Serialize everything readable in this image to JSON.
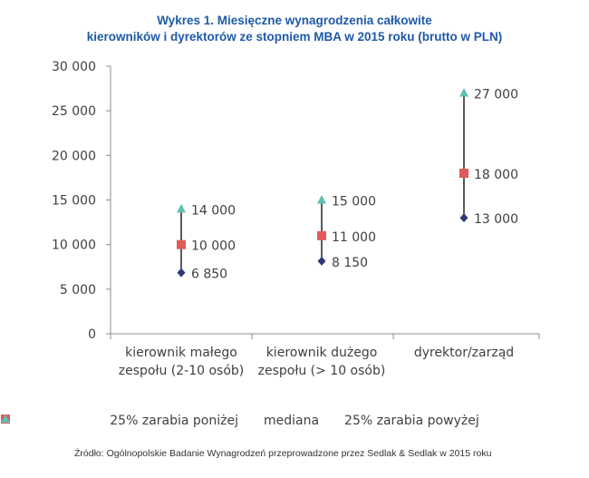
{
  "title_line1": "Wykres 1. Miesięczne wynagrodzenia całkowite",
  "title_line2": "kierowników i dyrektorów ze stopniem MBA w 2015 roku (brutto w PLN)",
  "source": "Źródło: Ogólnopolskie Badanie Wynagrodzeń przeprowadzone przez Sedlak & Sedlak w 2015 roku",
  "chart_data": {
    "type": "scatter",
    "title": "Wykres 1. Miesięczne wynagrodzenia całkowite kierowników i dyrektorów ze stopniem MBA w 2015 roku (brutto w PLN)",
    "categories": [
      [
        "kierownik małego",
        "zespołu (2-10 osób)"
      ],
      [
        "kierownik dużego",
        "zespołu (> 10 osób)"
      ],
      [
        "dyrektor/zarząd"
      ]
    ],
    "ylim": [
      0,
      30000
    ],
    "yticks": [
      0,
      5000,
      10000,
      15000,
      20000,
      25000,
      30000
    ],
    "ytick_labels": [
      "0",
      "5 000",
      "10 000",
      "15 000",
      "20 000",
      "25 000",
      "30 000"
    ],
    "grid": false,
    "legend_position": "bottom",
    "series": [
      {
        "name": "25% zarabia poniżej",
        "marker": "diamond",
        "color": "#2e3a75",
        "values": [
          6850,
          8150,
          13000
        ],
        "labels": [
          "6 850",
          "8 150",
          "13 000"
        ]
      },
      {
        "name": "mediana",
        "marker": "square",
        "color": "#e05a5a",
        "values": [
          10000,
          11000,
          18000
        ],
        "labels": [
          "10 000",
          "11 000",
          "18 000"
        ]
      },
      {
        "name": "25% zarabia powyżej",
        "marker": "triangle",
        "color": "#5fbfb0",
        "values": [
          14000,
          15000,
          27000
        ],
        "labels": [
          "14 000",
          "15 000",
          "27 000"
        ]
      }
    ]
  }
}
